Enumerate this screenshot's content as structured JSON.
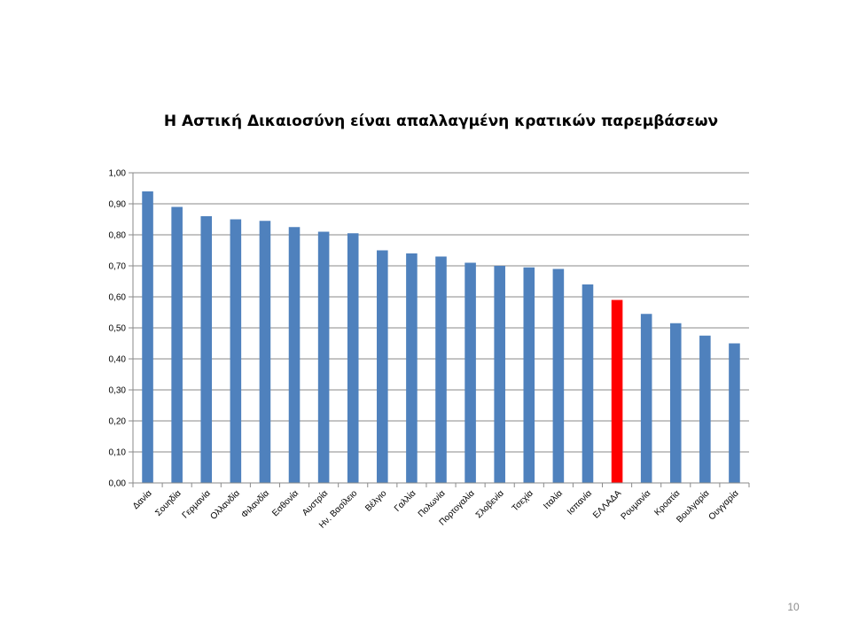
{
  "page": {
    "number": "10"
  },
  "chart_data": {
    "type": "bar",
    "title": "Η Αστική Δικαιοσύνη είναι απαλλαγμένη κρατικών παρεμβάσεων",
    "xlabel": "",
    "ylabel": "",
    "ylim": [
      0,
      1
    ],
    "yticks": [
      "0,00",
      "0,10",
      "0,20",
      "0,30",
      "0,40",
      "0,50",
      "0,60",
      "0,70",
      "0,80",
      "0,90",
      "1,00"
    ],
    "grid": true,
    "legend": "none",
    "bar_color": "#4f81bd",
    "highlight_color": "#ff0000",
    "highlight_category": "ΕΛΛΑΔΑ",
    "categories": [
      "Δανία",
      "Σουηδία",
      "Γερμανία",
      "Ολλανδία",
      "Φιλανδία",
      "Εσθονία",
      "Αυστρία",
      "Ην. Βασίλειο",
      "Βέλγιο",
      "Γαλλία",
      "Πολωνία",
      "Πορτογαλία",
      "Σλοβενία",
      "Τσεχία",
      "Ιταλία",
      "Ισπανία",
      "ΕΛΛΑΔΑ",
      "Ρουμανία",
      "Κροατία",
      "Βουλγαρία",
      "Ουγγαρία"
    ],
    "values": [
      0.94,
      0.89,
      0.86,
      0.85,
      0.845,
      0.825,
      0.81,
      0.805,
      0.75,
      0.74,
      0.73,
      0.71,
      0.7,
      0.695,
      0.69,
      0.64,
      0.59,
      0.545,
      0.515,
      0.475,
      0.45
    ]
  }
}
